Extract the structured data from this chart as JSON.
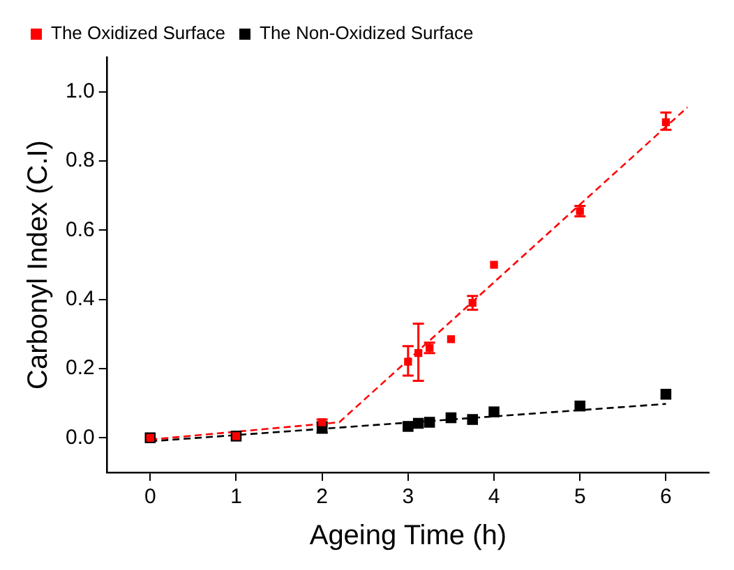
{
  "chart_data": {
    "type": "scatter",
    "xlabel": "Ageing Time (h)",
    "ylabel": "Carbonyl Index (C.I)",
    "xlim": [
      -0.5,
      6.5
    ],
    "ylim": [
      -0.1,
      1.1
    ],
    "xticks": [
      0,
      1,
      2,
      3,
      4,
      5,
      6
    ],
    "yticks": [
      {
        "value": 0,
        "label": "0.0"
      },
      {
        "value": 0.2,
        "label": "0.2"
      },
      {
        "value": 0.4,
        "label": "0.4"
      },
      {
        "value": 0.6,
        "label": "0.6"
      },
      {
        "value": 0.8,
        "label": "0.8"
      },
      {
        "value": 1,
        "label": "1.0"
      }
    ],
    "marker": "square",
    "legend": "top left",
    "grid": false,
    "series": [
      {
        "name": "The Oxidized Surface",
        "color": "#ff0000",
        "x": [
          0,
          1,
          2,
          3,
          3.12,
          3.25,
          3.5,
          3.75,
          4,
          5,
          6
        ],
        "values": [
          0,
          0.005,
          0.045,
          0.22,
          0.245,
          0.26,
          0.285,
          0.39,
          0.5,
          0.655,
          0.912
        ],
        "errors": [
          null,
          null,
          0.008,
          [
            0.18,
            0.265
          ],
          [
            0.165,
            0.33
          ],
          [
            0.245,
            0.275
          ],
          null,
          [
            0.37,
            0.41
          ],
          null,
          [
            0.64,
            0.67
          ],
          [
            0.89,
            0.94
          ]
        ]
      },
      {
        "name": "The Non-Oxidized Surface",
        "color": "#000000",
        "x": [
          0,
          1,
          2,
          3,
          3.12,
          3.25,
          3.5,
          3.75,
          4,
          5,
          6
        ],
        "values": [
          0,
          0.005,
          0.03,
          0.033,
          0.042,
          0.045,
          0.058,
          0.053,
          0.075,
          0.092,
          0.126
        ],
        "errors": [
          null,
          null,
          0.015,
          null,
          null,
          null,
          null,
          null,
          null,
          null,
          null
        ]
      },
      {
        "type": "line",
        "color": "#ff0000",
        "line_style": "dashed",
        "marker": "none",
        "x": [
          0,
          2.2,
          6.25
        ],
        "values": [
          -0.005,
          0.045,
          0.955
        ]
      },
      {
        "type": "line",
        "color": "#000000",
        "line_style": "dashed",
        "marker": "none",
        "x": [
          0,
          6
        ],
        "values": [
          -0.01,
          0.098
        ]
      }
    ]
  }
}
